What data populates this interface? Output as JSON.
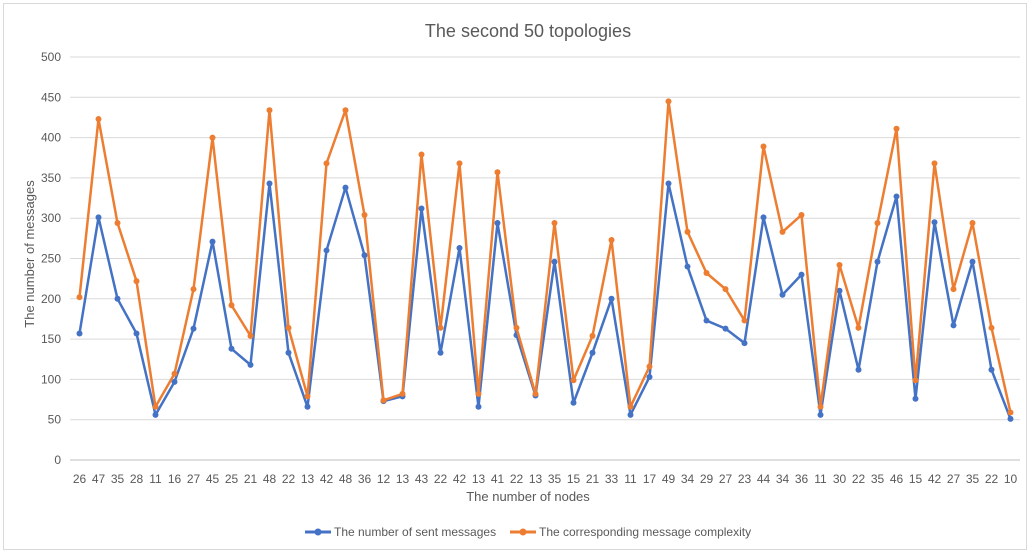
{
  "chart_data": {
    "type": "line",
    "title": "The second 50 topologies",
    "xlabel": "The number of nodes",
    "ylabel": "The number of messages",
    "ylim": [
      0,
      500
    ],
    "yticks": [
      0,
      50,
      100,
      150,
      200,
      250,
      300,
      350,
      400,
      450,
      500
    ],
    "grid": true,
    "legend_position": "bottom",
    "categories": [
      "26",
      "47",
      "35",
      "28",
      "11",
      "16",
      "27",
      "45",
      "25",
      "21",
      "48",
      "22",
      "13",
      "42",
      "48",
      "36",
      "12",
      "13",
      "43",
      "22",
      "42",
      "13",
      "41",
      "22",
      "13",
      "35",
      "15",
      "21",
      "33",
      "11",
      "17",
      "49",
      "34",
      "29",
      "27",
      "23",
      "44",
      "34",
      "36",
      "11",
      "30",
      "22",
      "35",
      "46",
      "15",
      "42",
      "27",
      "35",
      "22",
      "10"
    ],
    "series": [
      {
        "name": "The number of sent messages",
        "color": "#4472c4",
        "values": [
          157,
          301,
          200,
          157,
          56,
          97,
          163,
          271,
          138,
          118,
          343,
          133,
          66,
          260,
          338,
          254,
          73,
          79,
          312,
          133,
          263,
          66,
          294,
          155,
          80,
          246,
          71,
          133,
          200,
          56,
          103,
          343,
          240,
          173,
          163,
          145,
          301,
          205,
          230,
          56,
          210,
          112,
          246,
          327,
          76,
          295,
          167,
          246,
          112,
          51
        ]
      },
      {
        "name": "The corresponding message complexity",
        "color": "#ed7d31",
        "values": [
          202,
          423,
          294,
          222,
          66,
          107,
          212,
          400,
          192,
          154,
          434,
          164,
          79,
          368,
          434,
          304,
          74,
          82,
          379,
          164,
          368,
          82,
          357,
          164,
          82,
          294,
          99,
          154,
          273,
          66,
          116,
          445,
          283,
          232,
          212,
          173,
          389,
          283,
          304,
          66,
          242,
          164,
          294,
          411,
          99,
          368,
          212,
          294,
          164,
          59
        ]
      }
    ]
  }
}
